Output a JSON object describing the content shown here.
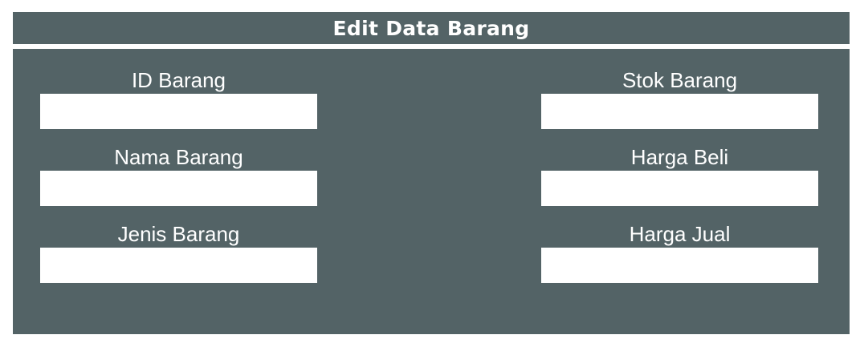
{
  "header": {
    "title": "Edit Data Barang"
  },
  "form": {
    "left_fields": [
      {
        "label": "ID Barang",
        "value": ""
      },
      {
        "label": "Nama Barang",
        "value": ""
      },
      {
        "label": "Jenis Barang",
        "value": ""
      }
    ],
    "right_fields": [
      {
        "label": "Stok Barang",
        "value": ""
      },
      {
        "label": "Harga Beli",
        "value": ""
      },
      {
        "label": "Harga Jual",
        "value": ""
      }
    ]
  },
  "colors": {
    "panel_background": "#536366",
    "input_background": "#ffffff",
    "text": "#ffffff"
  }
}
